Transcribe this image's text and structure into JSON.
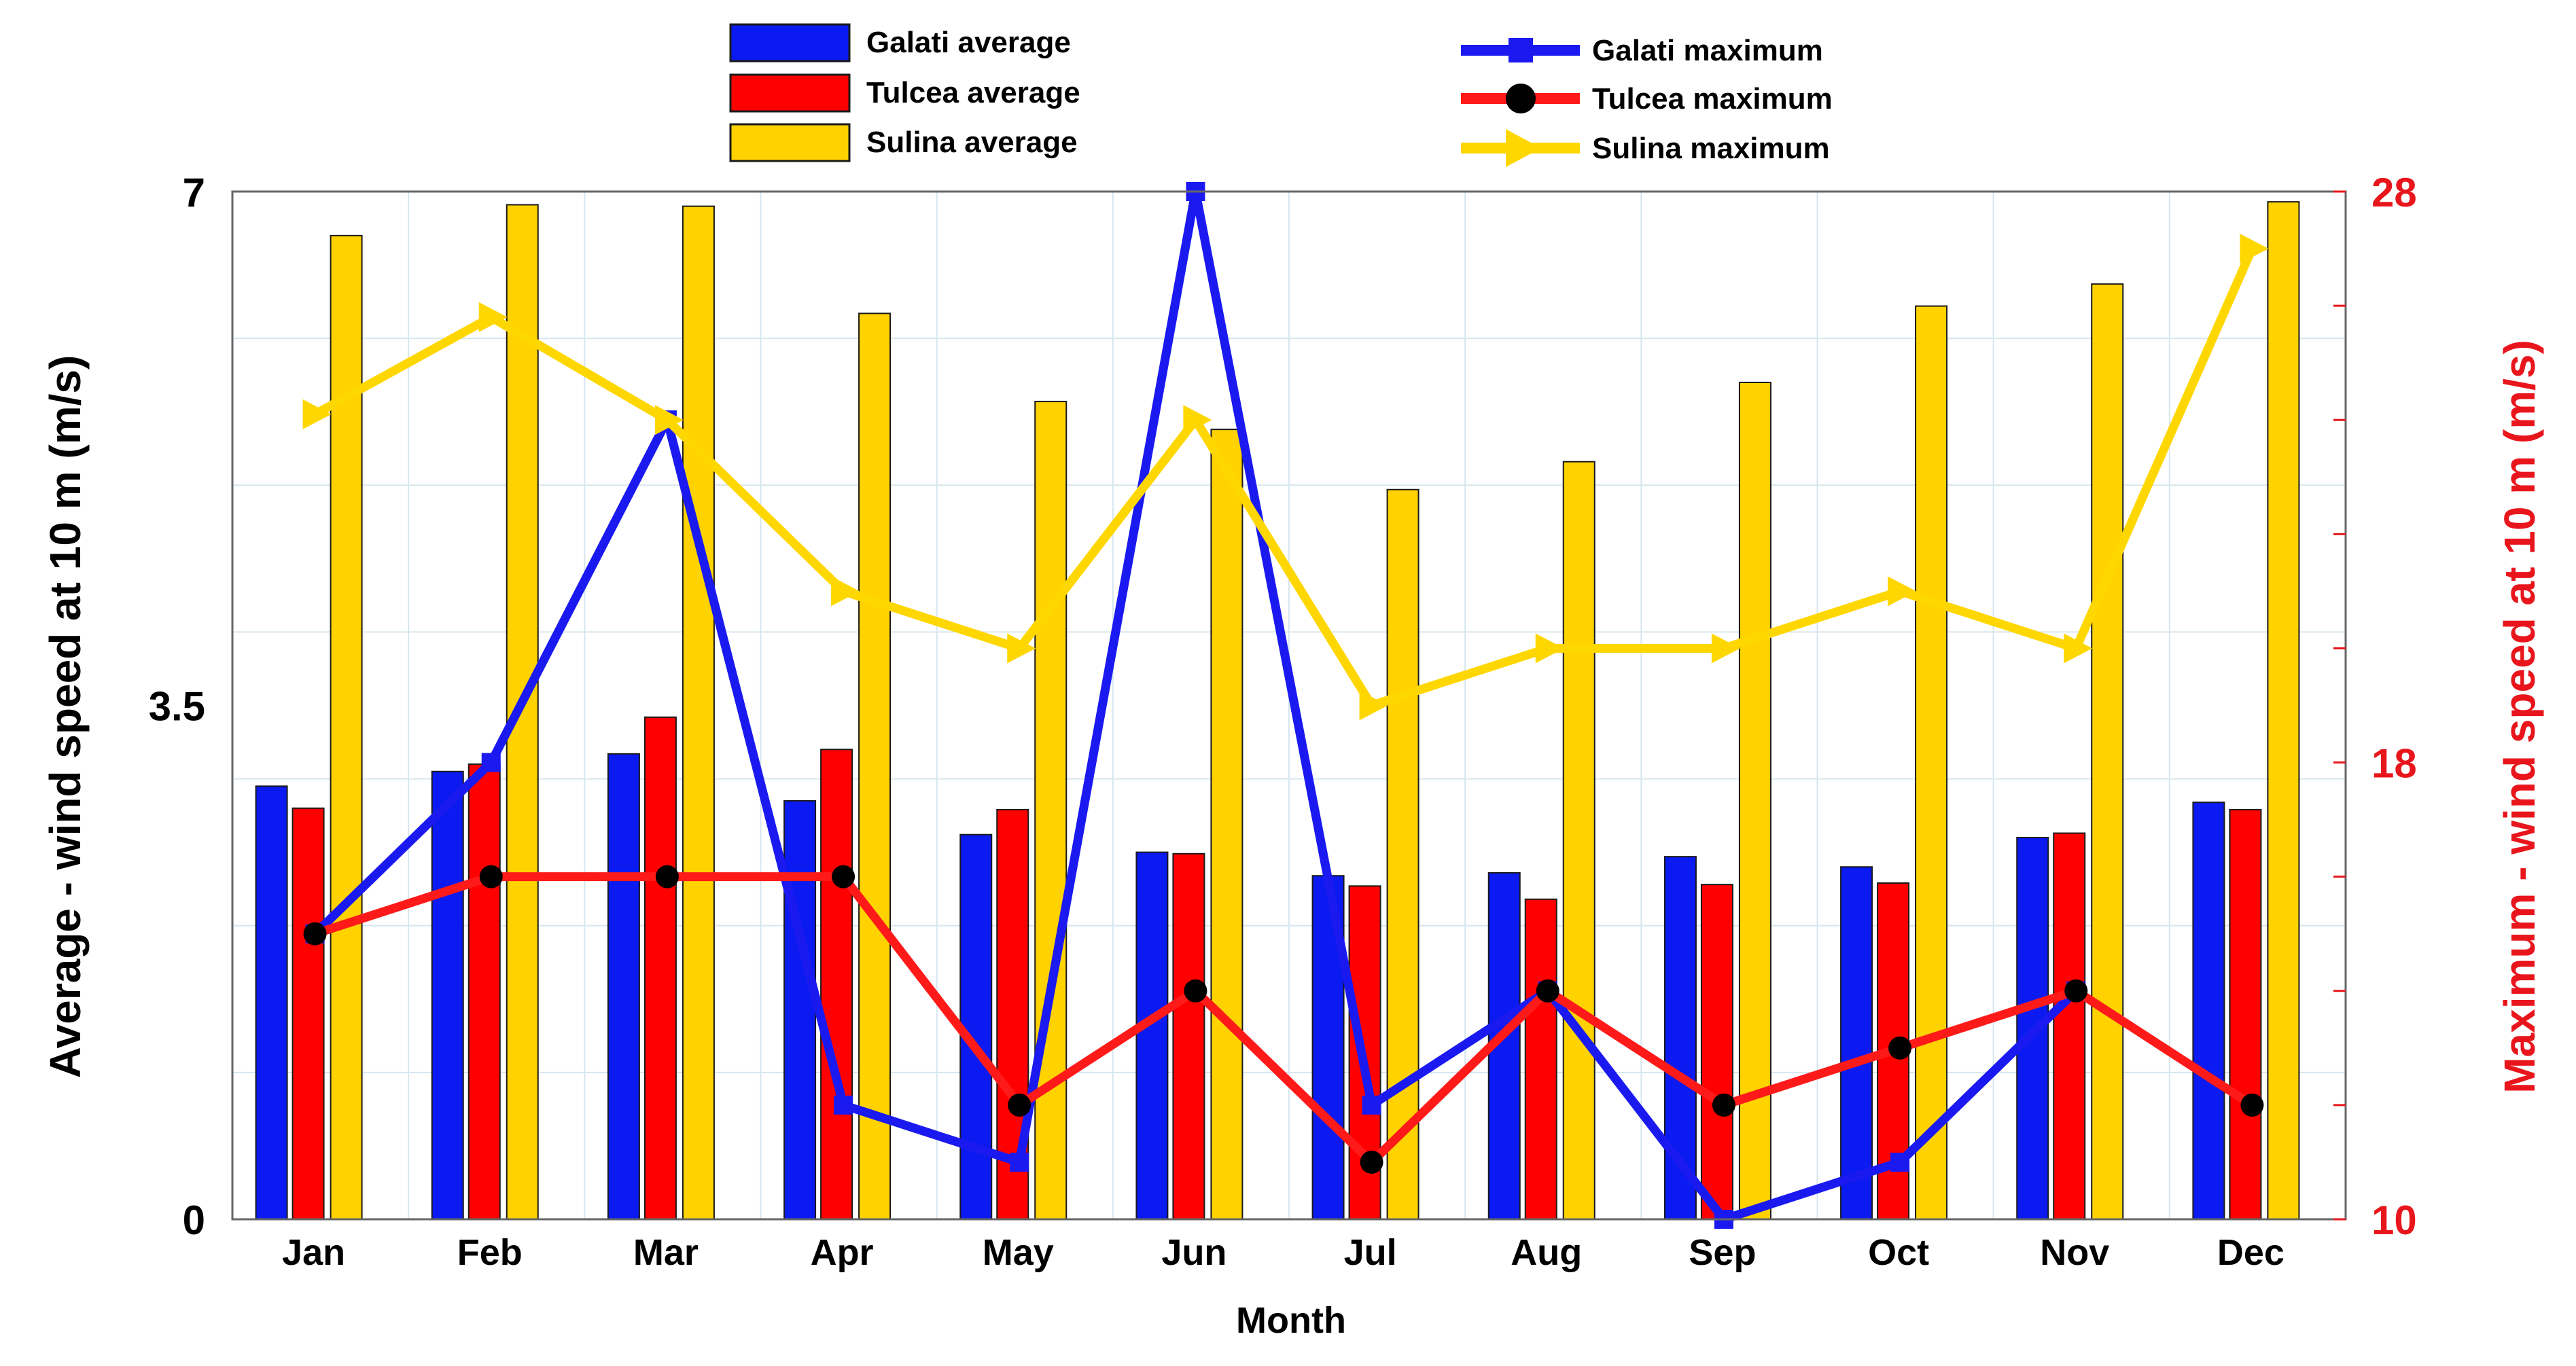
{
  "chart_data": {
    "type": "bar",
    "title": "",
    "xlabel": "Month",
    "ylabel_left": "Average - wind speed at 10 m (m/s)",
    "ylabel_right": "Maximum - wind speed at 10 m (m/s)",
    "categories": [
      "Jan",
      "Feb",
      "Mar",
      "Apr",
      "May",
      "Jun",
      "Jul",
      "Aug",
      "Sep",
      "Oct",
      "Nov",
      "Dec"
    ],
    "ylim_left": [
      0,
      7
    ],
    "ylim_right": [
      10,
      28
    ],
    "left_ticks": [
      "0",
      "3.5",
      "7"
    ],
    "right_ticks": [
      "10",
      "18",
      "28"
    ],
    "grid": true,
    "bar_series": [
      {
        "name": "Galati average",
        "color": "#0a1af0",
        "values": [
          2.95,
          3.05,
          3.17,
          2.85,
          2.62,
          2.5,
          2.34,
          2.36,
          2.47,
          2.4,
          2.6,
          2.84
        ]
      },
      {
        "name": "Tulcea average",
        "color": "#ff0000",
        "values": [
          2.8,
          3.1,
          3.42,
          3.2,
          2.79,
          2.49,
          2.27,
          2.18,
          2.28,
          2.29,
          2.63,
          2.79
        ]
      },
      {
        "name": "Sulina average",
        "color": "#ffd200",
        "values": [
          6.7,
          6.91,
          6.9,
          6.17,
          5.57,
          5.38,
          4.97,
          5.16,
          5.7,
          6.22,
          6.37,
          6.93
        ]
      }
    ],
    "line_series": [
      {
        "name": "Galati maximum",
        "color": "#1a1af0",
        "marker": "square",
        "values": [
          15,
          18,
          24,
          12,
          11,
          28,
          12,
          14,
          10,
          11,
          14,
          null
        ]
      },
      {
        "name": "Tulcea maximum",
        "color": "#ff1a1a",
        "marker": "circle",
        "values": [
          15,
          16,
          16,
          16,
          12,
          14,
          11,
          14,
          12,
          13,
          14,
          12
        ]
      },
      {
        "name": "Sulina maximum",
        "color": "#ffd700",
        "marker": "triangle-right",
        "values": [
          24.1,
          25.8,
          24,
          21,
          20,
          24,
          19,
          20,
          20,
          21,
          20,
          27
        ]
      }
    ],
    "legend_position": "top"
  }
}
